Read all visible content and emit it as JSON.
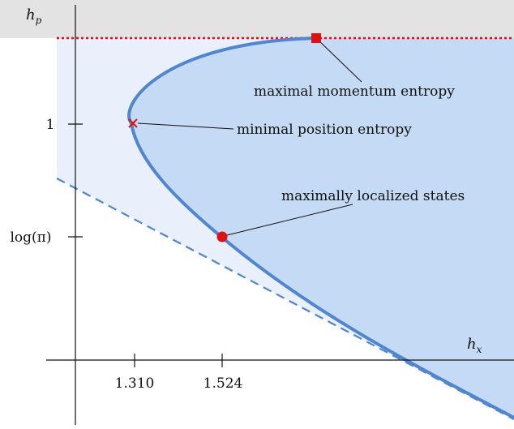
{
  "axes": {
    "x_name": "h",
    "x_sub": "x",
    "y_name": "h",
    "y_sub": "p",
    "x_ticks": [
      "1.310",
      "1.524"
    ],
    "y_ticks": [
      "1",
      "log(π)"
    ]
  },
  "annotations": {
    "max_momentum": "maximal momentum entropy",
    "min_position": "minimal position entropy",
    "max_localized": "maximally localized states"
  },
  "colors": {
    "region_light": "#e9f0fb",
    "region_dark": "#c5daf4",
    "curve": "#4f86cf",
    "marker": "#dd1111",
    "top_band": "#e3e3e3",
    "bound_line": "#dd1111"
  }
}
